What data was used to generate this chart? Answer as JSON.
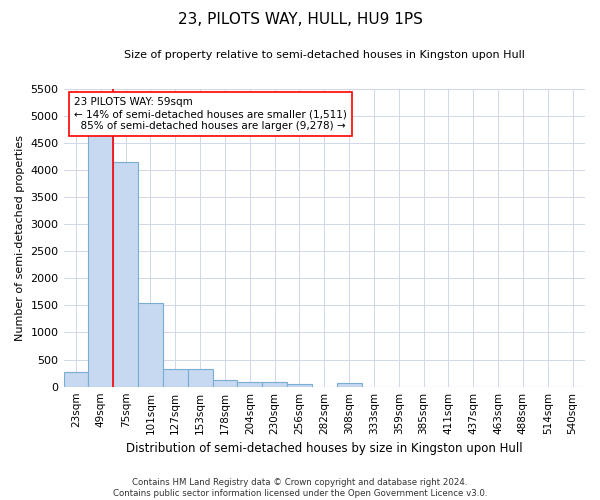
{
  "title": "23, PILOTS WAY, HULL, HU9 1PS",
  "subtitle": "Size of property relative to semi-detached houses in Kingston upon Hull",
  "xlabel": "Distribution of semi-detached houses by size in Kingston upon Hull",
  "ylabel": "Number of semi-detached properties",
  "footer_line1": "Contains HM Land Registry data © Crown copyright and database right 2024.",
  "footer_line2": "Contains public sector information licensed under the Open Government Licence v3.0.",
  "categories": [
    "23sqm",
    "49sqm",
    "75sqm",
    "101sqm",
    "127sqm",
    "153sqm",
    "178sqm",
    "204sqm",
    "230sqm",
    "256sqm",
    "282sqm",
    "308sqm",
    "333sqm",
    "359sqm",
    "385sqm",
    "411sqm",
    "437sqm",
    "463sqm",
    "488sqm",
    "514sqm",
    "540sqm"
  ],
  "values": [
    270,
    4850,
    4150,
    1550,
    320,
    320,
    130,
    90,
    80,
    55,
    0,
    60,
    0,
    0,
    0,
    0,
    0,
    0,
    0,
    0,
    0
  ],
  "bar_color": "#c6d9f0",
  "bar_edge_color": "#7aadd4",
  "ylim": [
    0,
    5500
  ],
  "yticks": [
    0,
    500,
    1000,
    1500,
    2000,
    2500,
    3000,
    3500,
    4000,
    4500,
    5000,
    5500
  ],
  "property_label": "23 PILOTS WAY: 59sqm",
  "pct_smaller": 14,
  "pct_larger": 85,
  "n_smaller": 1511,
  "n_larger": 9278,
  "vline_x_index": 1.5,
  "grid_color": "#d0d8e8",
  "background_color": "#ffffff"
}
